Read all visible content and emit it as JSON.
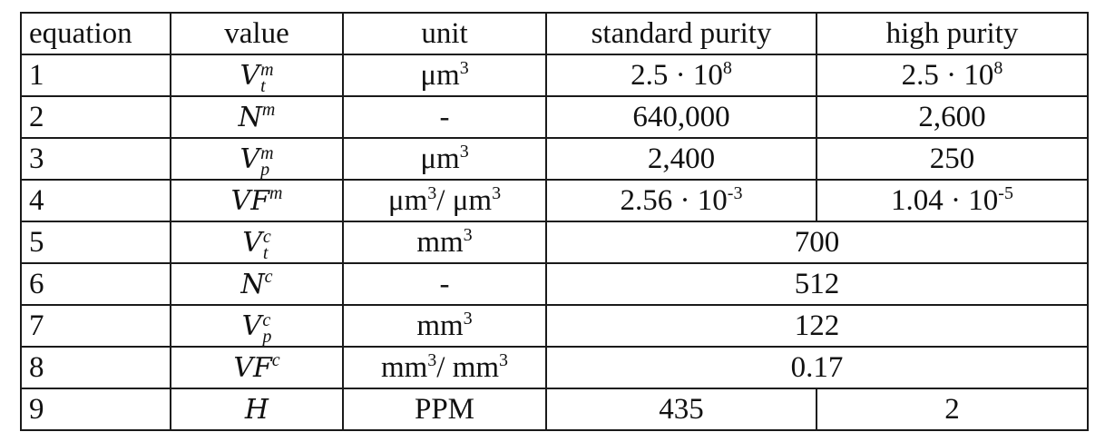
{
  "headers": [
    "equation",
    "value",
    "unit",
    "standard purity",
    "high purity"
  ],
  "rows": [
    {
      "eq": "1",
      "sym": "V",
      "sup": "m",
      "sub": "t",
      "unit": "μm",
      "unit_exp": "3",
      "std_base": "2.5 · 10",
      "std_exp": "8",
      "high_base": "2.5 · 10",
      "high_exp": "8"
    },
    {
      "eq": "2",
      "sym": "N",
      "sup": "m",
      "sub": "",
      "unit": "-",
      "unit_exp": "",
      "std": "640,000",
      "high": "2,600"
    },
    {
      "eq": "3",
      "sym": "V",
      "sup": "m",
      "sub": "p",
      "unit": "μm",
      "unit_exp": "3",
      "std": "2,400",
      "high": "250"
    },
    {
      "eq": "4",
      "sym": "VF",
      "sup": "m",
      "sub": "",
      "unit_a": "μm",
      "unit_a_exp": "3",
      "unit_sep": "/ ",
      "unit_b": "μm",
      "unit_b_exp": "3",
      "std_base": "2.56 · 10",
      "std_exp": "-3",
      "high_base": "1.04 · 10",
      "high_exp": "-5"
    },
    {
      "eq": "5",
      "sym": "V",
      "sup": "c",
      "sub": "t",
      "unit": "mm",
      "unit_exp": "3",
      "merged": "700"
    },
    {
      "eq": "6",
      "sym": "N",
      "sup": "c",
      "sub": "",
      "unit": "-",
      "unit_exp": "",
      "merged": "512"
    },
    {
      "eq": "7",
      "sym": "V",
      "sup": "c",
      "sub": "p",
      "unit": "mm",
      "unit_exp": "3",
      "merged": "122"
    },
    {
      "eq": "8",
      "sym": "VF",
      "sup": "c",
      "sub": "",
      "unit_a": "mm",
      "unit_a_exp": "3",
      "unit_sep": "/ ",
      "unit_b": "mm",
      "unit_b_exp": "3",
      "merged": "0.17"
    },
    {
      "eq": "9",
      "sym": "H",
      "sup": "",
      "sub": "",
      "unit": "PPM",
      "unit_exp": "",
      "std": "435",
      "high": "2"
    }
  ]
}
